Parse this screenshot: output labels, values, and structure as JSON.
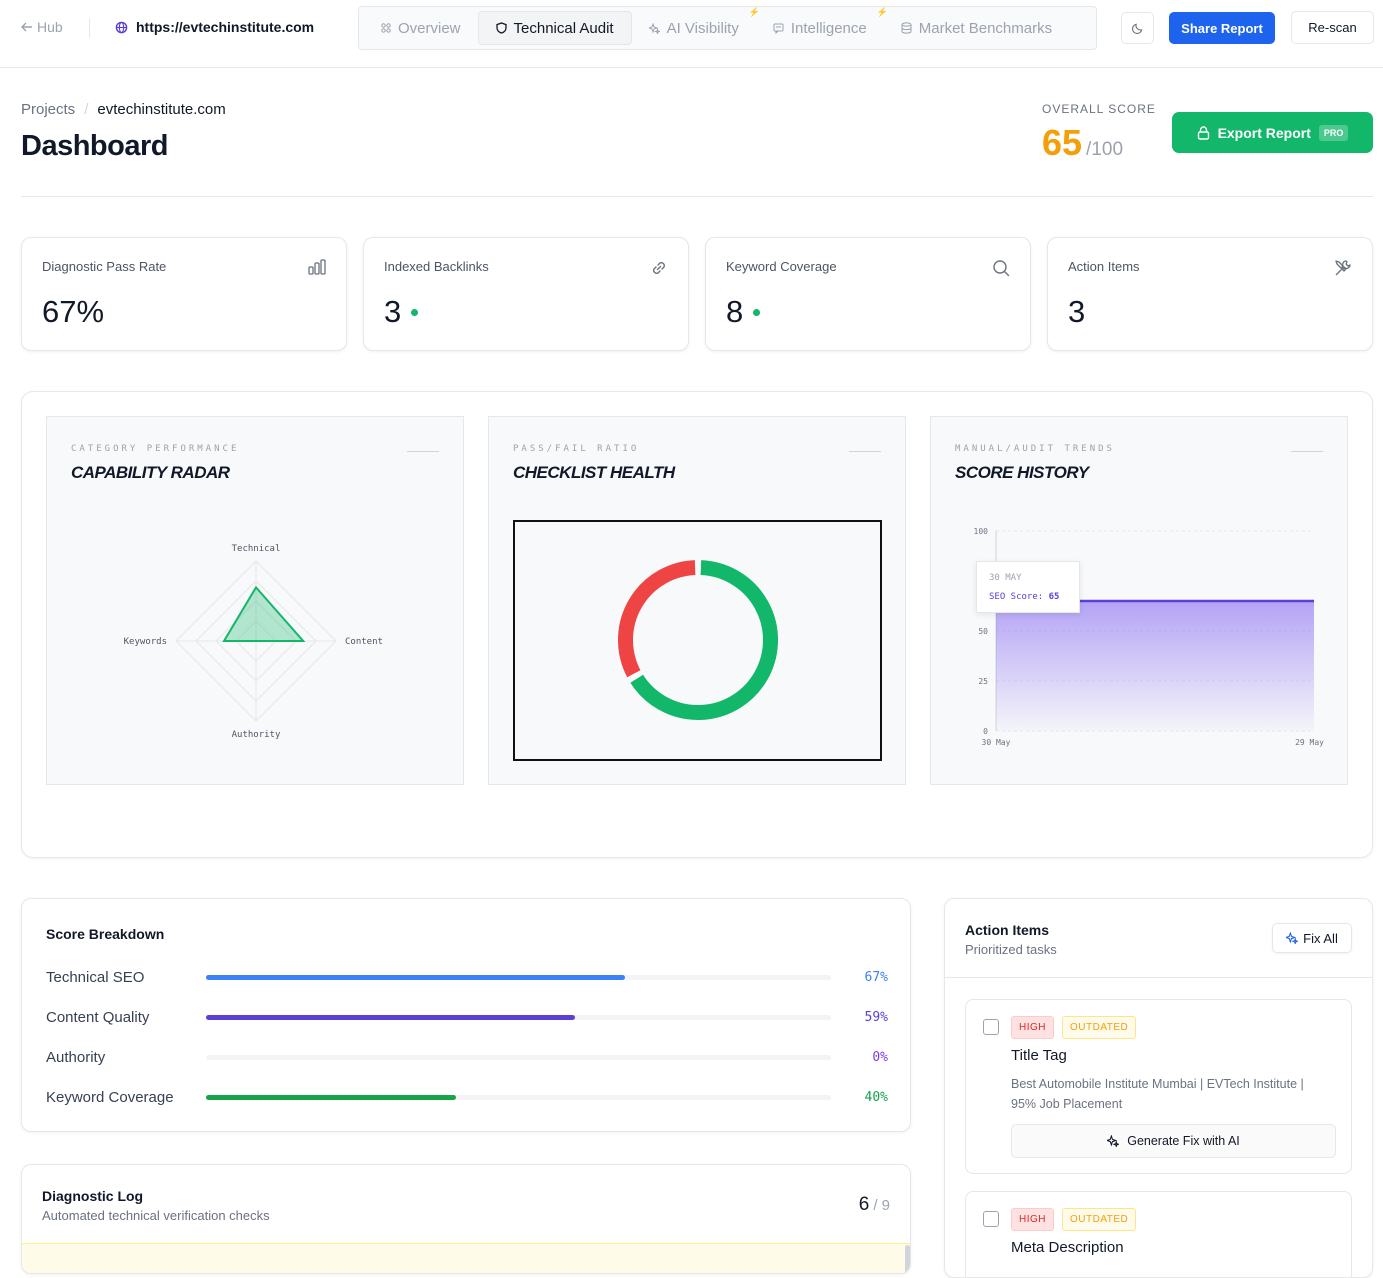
{
  "topbar": {
    "hub_label": "Hub",
    "url": "https://evtechinstitute.com",
    "tabs": [
      {
        "label": "Overview",
        "icon": "grid-icon"
      },
      {
        "label": "Technical Audit",
        "icon": "shield-icon"
      },
      {
        "label": "AI Visibility",
        "icon": "sparkle-icon"
      },
      {
        "label": "Intelligence",
        "icon": "chat-icon"
      },
      {
        "label": "Market Benchmarks",
        "icon": "database-icon"
      }
    ],
    "share_label": "Share Report",
    "rescan_label": "Re-scan"
  },
  "header": {
    "breadcrumb_root": "Projects",
    "breadcrumb_sep": "/",
    "breadcrumb_current": "evtechinstitute.com",
    "title": "Dashboard",
    "overall_label": "OVERALL SCORE",
    "overall_value": "65",
    "overall_max": "/100",
    "export_label": "Export Report",
    "export_badge": "PRO"
  },
  "stats": [
    {
      "label": "Diagnostic Pass Rate",
      "value": "67%",
      "icon": "bar-chart-icon"
    },
    {
      "label": "Indexed Backlinks",
      "value": "3",
      "icon": "link-icon"
    },
    {
      "label": "Keyword Coverage",
      "value": "8",
      "icon": "search-icon"
    },
    {
      "label": "Action Items",
      "value": "3",
      "icon": "tools-icon"
    }
  ],
  "panels": {
    "radar": {
      "kicker": "CATEGORY PERFORMANCE",
      "title": "CAPABILITY RADAR"
    },
    "donut": {
      "kicker": "PASS/FAIL RATIO",
      "title": "CHECKLIST HEALTH"
    },
    "history": {
      "kicker": "MANUAL/AUDIT TRENDS",
      "title": "SCORE HISTORY",
      "tooltip_date": "30 MAY",
      "tooltip_label": "SEO Score:",
      "tooltip_value": "65"
    }
  },
  "chart_data": [
    {
      "type": "radar",
      "title": "CAPABILITY RADAR",
      "categories": [
        "Technical",
        "Content",
        "Authority",
        "Keywords"
      ],
      "values": [
        67,
        59,
        0,
        40
      ],
      "range": [
        0,
        100
      ]
    },
    {
      "type": "pie",
      "title": "CHECKLIST HEALTH",
      "slices": [
        {
          "label": "pass",
          "value": 6,
          "color": "#12b76a"
        },
        {
          "label": "fail",
          "value": 3,
          "color": "#ef4444"
        }
      ]
    },
    {
      "type": "area",
      "title": "SCORE HISTORY",
      "x": [
        "30 May",
        "29 May"
      ],
      "values": [
        65,
        65
      ],
      "yticks": [
        "0",
        "25",
        "50",
        "100"
      ],
      "ylim": [
        0,
        100
      ],
      "color": "#5b3fd6",
      "grid": true
    }
  ],
  "breakdown": {
    "title": "Score Breakdown",
    "rows": [
      {
        "name": "Technical SEO",
        "pct": "67%",
        "value": 67,
        "color": "#3b82f6"
      },
      {
        "name": "Content Quality",
        "pct": "59%",
        "value": 59,
        "color": "#5b3fd6"
      },
      {
        "name": "Authority",
        "pct": "0%",
        "value": 0,
        "color": "#7c3aed"
      },
      {
        "name": "Keyword Coverage",
        "pct": "40%",
        "value": 40,
        "color": "#16a34a"
      }
    ]
  },
  "log": {
    "title": "Diagnostic Log",
    "subtitle": "Automated technical verification checks",
    "passed": "6",
    "total": "/ 9"
  },
  "actions": {
    "title": "Action Items",
    "subtitle": "Prioritized tasks",
    "fix_all": "Fix All",
    "items": [
      {
        "priority": "HIGH",
        "status": "OUTDATED",
        "title": "Title Tag",
        "desc": "Best Automobile Institute Mumbai | EVTech Institute | 95% Job Placement",
        "button": "Generate Fix with AI"
      },
      {
        "priority": "HIGH",
        "status": "OUTDATED",
        "title": "Meta Description"
      }
    ]
  }
}
